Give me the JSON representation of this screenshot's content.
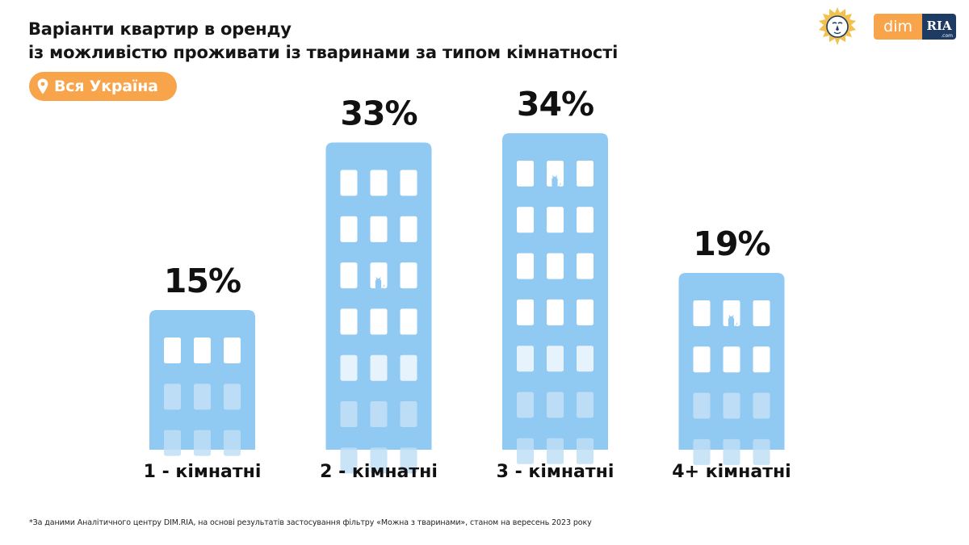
{
  "header": {
    "title_line1": "Варіанти квартир в оренду",
    "title_line2": "із можливістю проживати із тваринами за типом кімнатності"
  },
  "region_badge": {
    "icon": "location-pin-icon",
    "label": "Вся Україна"
  },
  "logos": {
    "emblem": "lion-emblem-icon",
    "dim": "dim",
    "ria": "RIA",
    "ria_suffix": ".com"
  },
  "colors": {
    "building": "#90c9f2",
    "window_bright": "#ffffff",
    "window_mid": "#e6f3fc",
    "window_faded": "#c0def6",
    "accent": "#f7a44b",
    "text": "#111111",
    "brand_dark": "#1d3b63"
  },
  "chart_data": {
    "type": "bar",
    "categories": [
      "1 - кімнатні",
      "2 - кімнатні",
      "3 - кімнатні",
      "4+ кімнатні"
    ],
    "values": [
      15,
      33,
      34,
      19
    ],
    "value_labels": [
      "15%",
      "33%",
      "34%",
      "19%"
    ],
    "unit": "%",
    "title": "Варіанти квартир в оренду із можливістю проживати із тваринами за типом кімнатності",
    "xlabel": "",
    "ylabel": "",
    "ylim": [
      0,
      34
    ],
    "grid": false,
    "legend": "none"
  },
  "footnote": "*За даними Аналітичного центру DIM.RIA, на основі результатів застосування фільтру «Можна з тваринами», станом на вересень 2023 року"
}
